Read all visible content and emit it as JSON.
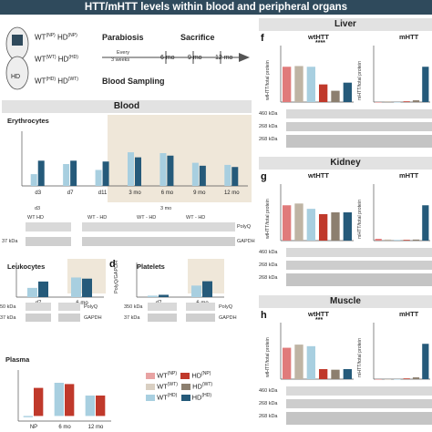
{
  "banner": "HTT/mHTT levels within blood and peripheral organs",
  "colors": {
    "np": "#e07b7b",
    "wt_wt": "#bfb4a4",
    "wt_hd": "#a8cfe0",
    "hd_np": "#c0392b",
    "hd_wt": "#8c7f6f",
    "hd_hd": "#255a7a",
    "beige": "#efe7d9",
    "blue_bg": "#e3eef4"
  },
  "design": {
    "rows": [
      {
        "wt": "WT",
        "wt_sup": "(NP)",
        "hd": "HD",
        "hd_sup": "(NP)"
      },
      {
        "wt": "WT",
        "wt_sup": "(WT)",
        "hd": "HD",
        "hd_sup": "(HD)"
      },
      {
        "wt": "WT",
        "wt_sup": "(HD)",
        "hd": "HD",
        "hd_sup": "(WT)"
      }
    ],
    "parabiosis": "Parabiosis",
    "every": "Every",
    "weeks": "3 weeks",
    "sacrifice": "Sacrifice",
    "blood_sampling": "Blood Sampling",
    "timepoints": [
      "6 mo",
      "9 mo",
      "12 mo"
    ],
    "mouse_label": "HD"
  },
  "blood": {
    "title": "Blood",
    "erythro_title": "Erythrocytes",
    "erythro_xticks": [
      "d3",
      "d7",
      "d11",
      "3 mo",
      "6 mo",
      "9 mo",
      "12 mo"
    ],
    "erythro_blot_labels": [
      "d3",
      "3 mo"
    ],
    "erythro_blot_groups": [
      "WT HD",
      "WT - HD",
      "WT - HD",
      "WT - HD"
    ],
    "kda_a": "37 kDa",
    "polyq": "PolyQ",
    "gapdh": "GAPDH",
    "leuko_title": "Leukocytes",
    "leuko_x": [
      "d7",
      "6 mo"
    ],
    "leuko_kda1": "50 kDa",
    "leuko_kda2": "37 kDa",
    "panel_d": "d",
    "plate_title": "Platelets",
    "plate_ylabel": "PolyQ/GAPDH",
    "plate_x": [
      "d7",
      "6 mo"
    ],
    "plate_kda1": "350 kDa",
    "plate_kda2": "37 kDa",
    "plasma_title": "Plasma",
    "plasma_x": [
      "NP",
      "6 mo",
      "12 mo"
    ]
  },
  "legend": [
    {
      "wt": "WT",
      "wt_sup": "(NP)",
      "hd": "HD",
      "hd_sup": "(NP)"
    },
    {
      "wt": "WT",
      "wt_sup": "(WT)",
      "hd": "HD",
      "hd_sup": "(WT)"
    },
    {
      "wt": "WT",
      "wt_sup": "(HD)",
      "hd": "HD",
      "hd_sup": "(HD)"
    }
  ],
  "organs": [
    {
      "letter": "f",
      "title": "Liver",
      "wt_title": "wtHTT",
      "m_title": "mHTT",
      "ylab_wt": "wtHTT/total protein",
      "ylab_m": "mHTT/total protein",
      "sig": "****",
      "x": [
        "WT(NP)",
        "WT(WT)",
        "WT(HD)",
        "HD(NP)",
        "HD(WT)",
        "HD(HD)"
      ],
      "kda1": "460 kDa",
      "kda2": "268 kDa",
      "kda3": "268 kDa"
    },
    {
      "letter": "g",
      "title": "Kidney",
      "wt_title": "wtHTT",
      "m_title": "mHTT",
      "ylab_wt": "wtHTT/total protein",
      "ylab_m": "mHTT/total protein",
      "sig": "",
      "x": [
        "",
        "",
        "",
        "",
        "",
        ""
      ],
      "kda1": "460 kDa",
      "kda2": "268 kDa",
      "kda3": "268 kDa"
    },
    {
      "letter": "h",
      "title": "Muscle",
      "wt_title": "wtHTT",
      "m_title": "mHTT",
      "ylab_wt": "wtHTT/total protein",
      "ylab_m": "mHTT/total protein",
      "sig": "***",
      "x": [
        "",
        "",
        "",
        "",
        "",
        ""
      ],
      "kda1": "460 kDa",
      "kda2": "268 kDa",
      "kda3": "268 kDa"
    }
  ],
  "chart_data": [
    {
      "type": "bar",
      "title": "Erythrocytes",
      "categories": [
        "d3",
        "d7",
        "d11",
        "3 mo",
        "6 mo",
        "9 mo",
        "12 mo"
      ],
      "series": [
        {
          "name": "WT(HD)",
          "values": [
            0.28,
            0.52,
            0.38,
            0.8,
            0.78,
            0.55,
            0.5
          ]
        },
        {
          "name": "HD(HD)",
          "values": [
            0.6,
            0.6,
            0.58,
            0.68,
            0.72,
            0.48,
            0.45
          ]
        }
      ],
      "ylim": [
        0,
        1.3
      ]
    },
    {
      "type": "bar",
      "title": "Leukocytes",
      "categories": [
        "d7",
        "6 mo"
      ],
      "series": [
        {
          "name": "WT(HD)",
          "values": [
            0.8,
            1.7
          ]
        },
        {
          "name": "HD(HD)",
          "values": [
            1.35,
            1.6
          ]
        }
      ],
      "ylim": [
        0,
        3
      ]
    },
    {
      "type": "bar",
      "title": "Platelets",
      "ylabel": "PolyQ/GAPDH",
      "categories": [
        "d7",
        "6 mo"
      ],
      "series": [
        {
          "name": "WT(HD)",
          "values": [
            0.05,
            0.4
          ]
        },
        {
          "name": "HD(HD)",
          "values": [
            0.08,
            0.55
          ]
        }
      ],
      "ylim": [
        0,
        1.2
      ]
    },
    {
      "type": "bar",
      "title": "Plasma",
      "categories": [
        "NP",
        "6 mo",
        "12 mo"
      ],
      "series": [
        {
          "name": "WT",
          "values": [
            -0.05,
            1.3,
            0.8
          ]
        },
        {
          "name": "HD",
          "values": [
            1.1,
            1.25,
            0.8
          ]
        }
      ],
      "ylim": [
        -0.2,
        1.8
      ]
    },
    {
      "type": "bar",
      "title": "Liver wtHTT",
      "categories": [
        "WT(NP)",
        "WT(WT)",
        "WT(HD)",
        "HD(NP)",
        "HD(WT)",
        "HD(HD)"
      ],
      "values": [
        1.0,
        1.02,
        1.0,
        0.5,
        0.32,
        0.55
      ],
      "ylim": [
        0,
        1.6
      ]
    },
    {
      "type": "bar",
      "title": "Liver mHTT",
      "categories": [
        "WT(NP)",
        "WT(WT)",
        "WT(HD)",
        "HD(NP)",
        "HD(WT)",
        "HD(HD)"
      ],
      "values": [
        0.0,
        0.02,
        0.0,
        0.02,
        0.05,
        1.0
      ],
      "ylim": [
        0,
        1.6
      ]
    },
    {
      "type": "bar",
      "title": "Kidney wtHTT",
      "categories": [
        "WT(NP)",
        "WT(WT)",
        "WT(HD)",
        "HD(NP)",
        "HD(WT)",
        "HD(HD)"
      ],
      "values": [
        1.0,
        1.05,
        0.9,
        0.75,
        0.8,
        0.8
      ],
      "ylim": [
        0,
        1.6
      ]
    },
    {
      "type": "bar",
      "title": "Kidney mHTT",
      "categories": [
        "WT(NP)",
        "WT(WT)",
        "WT(HD)",
        "HD(NP)",
        "HD(WT)",
        "HD(HD)"
      ],
      "values": [
        0.05,
        0.03,
        0.02,
        0.02,
        0.03,
        1.0
      ],
      "ylim": [
        0,
        1.6
      ]
    },
    {
      "type": "bar",
      "title": "Muscle wtHTT",
      "categories": [
        "WT(NP)",
        "WT(WT)",
        "WT(HD)",
        "HD(NP)",
        "HD(WT)",
        "HD(HD)"
      ],
      "values": [
        1.0,
        1.1,
        1.05,
        0.32,
        0.3,
        0.32
      ],
      "ylim": [
        0,
        1.8
      ]
    },
    {
      "type": "bar",
      "title": "Muscle mHTT",
      "categories": [
        "WT(NP)",
        "WT(WT)",
        "WT(HD)",
        "HD(NP)",
        "HD(WT)",
        "HD(HD)"
      ],
      "values": [
        0.0,
        0.0,
        0.0,
        0.02,
        0.05,
        1.0
      ],
      "ylim": [
        0,
        1.6
      ]
    }
  ]
}
